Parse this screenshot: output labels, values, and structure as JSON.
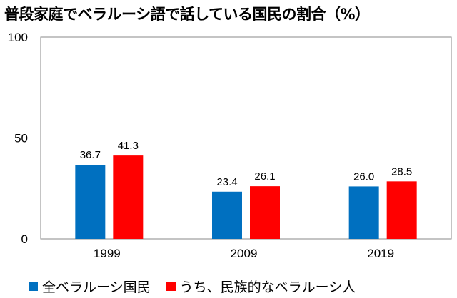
{
  "chart_data": {
    "type": "bar",
    "title": "普段家庭でベラルーシ語で話している国民の割合（%）",
    "categories": [
      "1999",
      "2009",
      "2019"
    ],
    "series": [
      {
        "name": "全ベラルーシ国民",
        "color": "#0070C0",
        "values": [
          36.7,
          23.4,
          26.0
        ],
        "labels": [
          "36.7",
          "23.4",
          "26.0"
        ]
      },
      {
        "name": "うち、民族的なベラルーシ人",
        "color": "#FF0000",
        "values": [
          41.3,
          26.1,
          28.5
        ],
        "labels": [
          "41.3",
          "26.1",
          "28.5"
        ]
      }
    ],
    "yticks": [
      "0",
      "50",
      "100"
    ],
    "ylim": [
      0,
      100
    ],
    "xlabel": "",
    "ylabel": "",
    "grid": true,
    "legend": "bottom"
  }
}
